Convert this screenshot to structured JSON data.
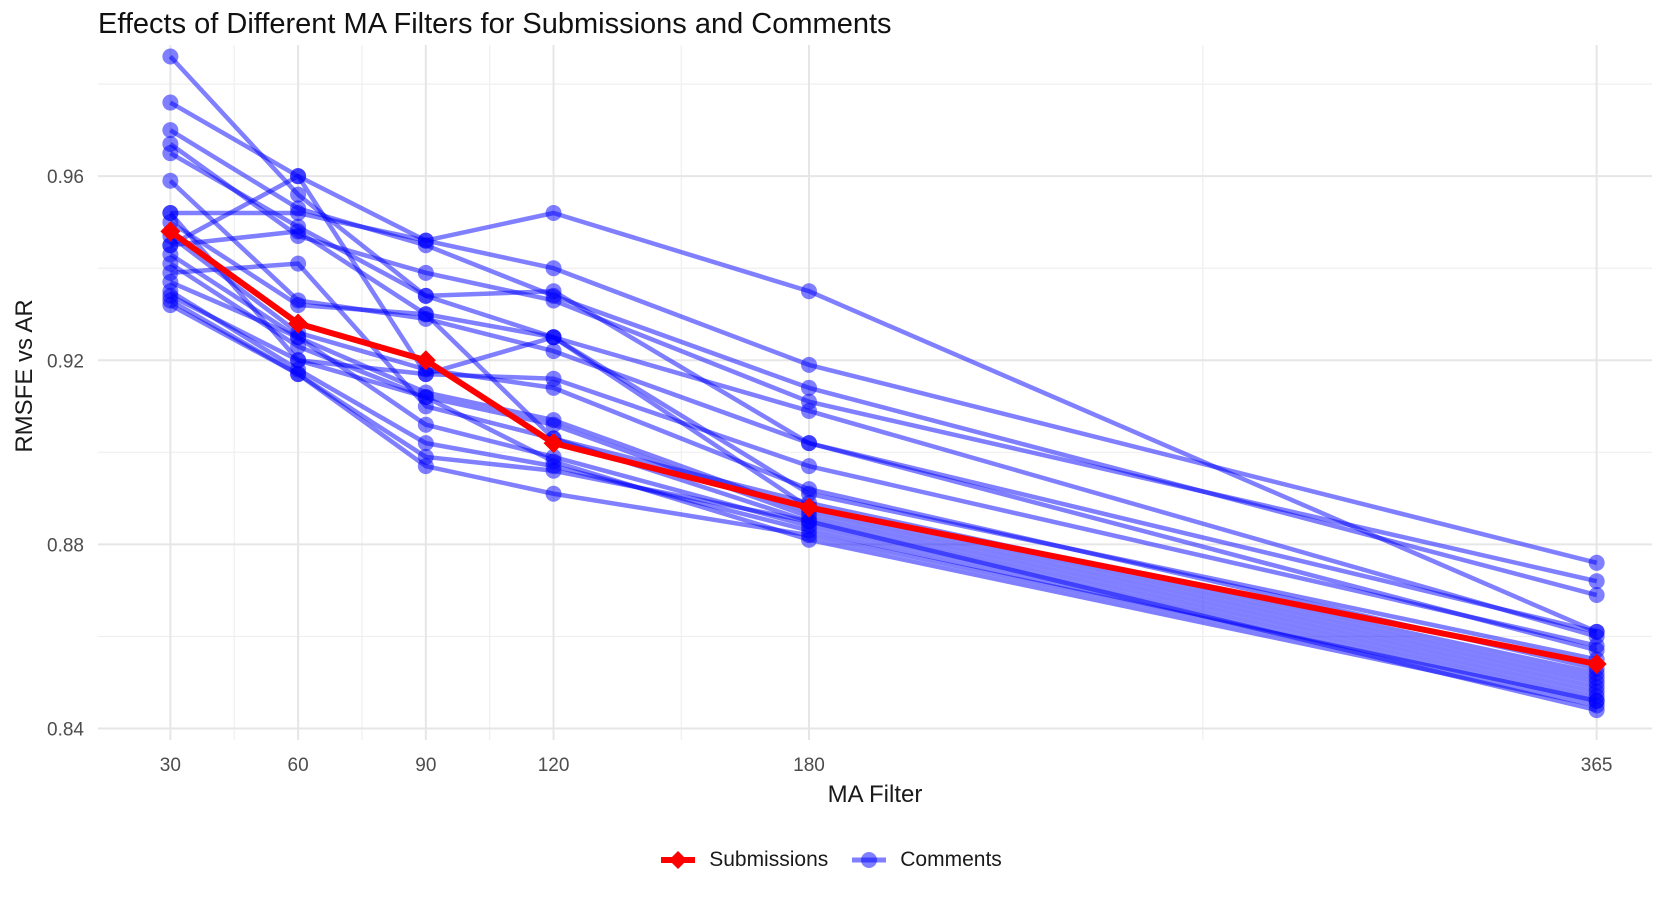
{
  "chart_data": {
    "type": "line",
    "title": "Effects of Different MA Filters for Submissions and Comments",
    "xlabel": "MA Filter",
    "ylabel": "RMSFE vs AR",
    "x": [
      30,
      60,
      90,
      120,
      180,
      365
    ],
    "x_tick_labels": [
      "30",
      "60",
      "90",
      "120",
      "180",
      "365"
    ],
    "xlim": [
      13,
      378
    ],
    "ylim": [
      0.8375,
      0.9885
    ],
    "y_ticks": [
      0.84,
      0.88,
      0.92,
      0.96
    ],
    "y_tick_labels": [
      "0.84",
      "0.88",
      "0.92",
      "0.96"
    ],
    "grid": true,
    "legend_position": "bottom",
    "colors": {
      "submissions": "#ff0000",
      "comments": "#0000ff"
    },
    "series": [
      {
        "name": "Submissions",
        "color": "#ff0000",
        "values": [
          0.948,
          0.928,
          0.92,
          0.902,
          0.888,
          0.854
        ]
      },
      {
        "name": "Comments",
        "color": "#0000ff",
        "lines": [
          [
            0.986,
            0.956,
            0.934,
            0.935,
            0.902,
            0.861
          ],
          [
            0.976,
            0.96,
            0.946,
            0.94,
            0.919,
            0.876
          ],
          [
            0.97,
            0.953,
            0.945,
            0.934,
            0.914,
            0.869
          ],
          [
            0.967,
            0.947,
            0.939,
            0.933,
            0.911,
            0.872
          ],
          [
            0.965,
            0.949,
            0.934,
            0.925,
            0.909,
            0.86
          ],
          [
            0.959,
            0.933,
            0.929,
            0.922,
            0.902,
            0.857
          ],
          [
            0.952,
            0.952,
            0.946,
            0.952,
            0.935,
            0.861
          ],
          [
            0.952,
            0.92,
            0.917,
            0.916,
            0.897,
            0.858
          ],
          [
            0.95,
            0.932,
            0.93,
            0.925,
            0.891,
            0.855
          ],
          [
            0.947,
            0.926,
            0.918,
            0.914,
            0.892,
            0.853
          ],
          [
            0.945,
            0.948,
            0.93,
            0.903,
            0.889,
            0.852
          ],
          [
            0.945,
            0.96,
            0.917,
            0.925,
            0.888,
            0.851
          ],
          [
            0.943,
            0.925,
            0.913,
            0.907,
            0.887,
            0.85
          ],
          [
            0.941,
            0.923,
            0.912,
            0.906,
            0.886,
            0.849
          ],
          [
            0.939,
            0.941,
            0.91,
            0.903,
            0.885,
            0.848
          ],
          [
            0.937,
            0.925,
            0.906,
            0.899,
            0.884,
            0.847
          ],
          [
            0.935,
            0.918,
            0.902,
            0.897,
            0.883,
            0.846
          ],
          [
            0.934,
            0.92,
            0.912,
            0.898,
            0.881,
            0.845
          ],
          [
            0.933,
            0.917,
            0.899,
            0.896,
            0.885,
            0.844
          ],
          [
            0.932,
            0.917,
            0.897,
            0.891,
            0.882,
            0.846
          ]
        ]
      }
    ]
  }
}
